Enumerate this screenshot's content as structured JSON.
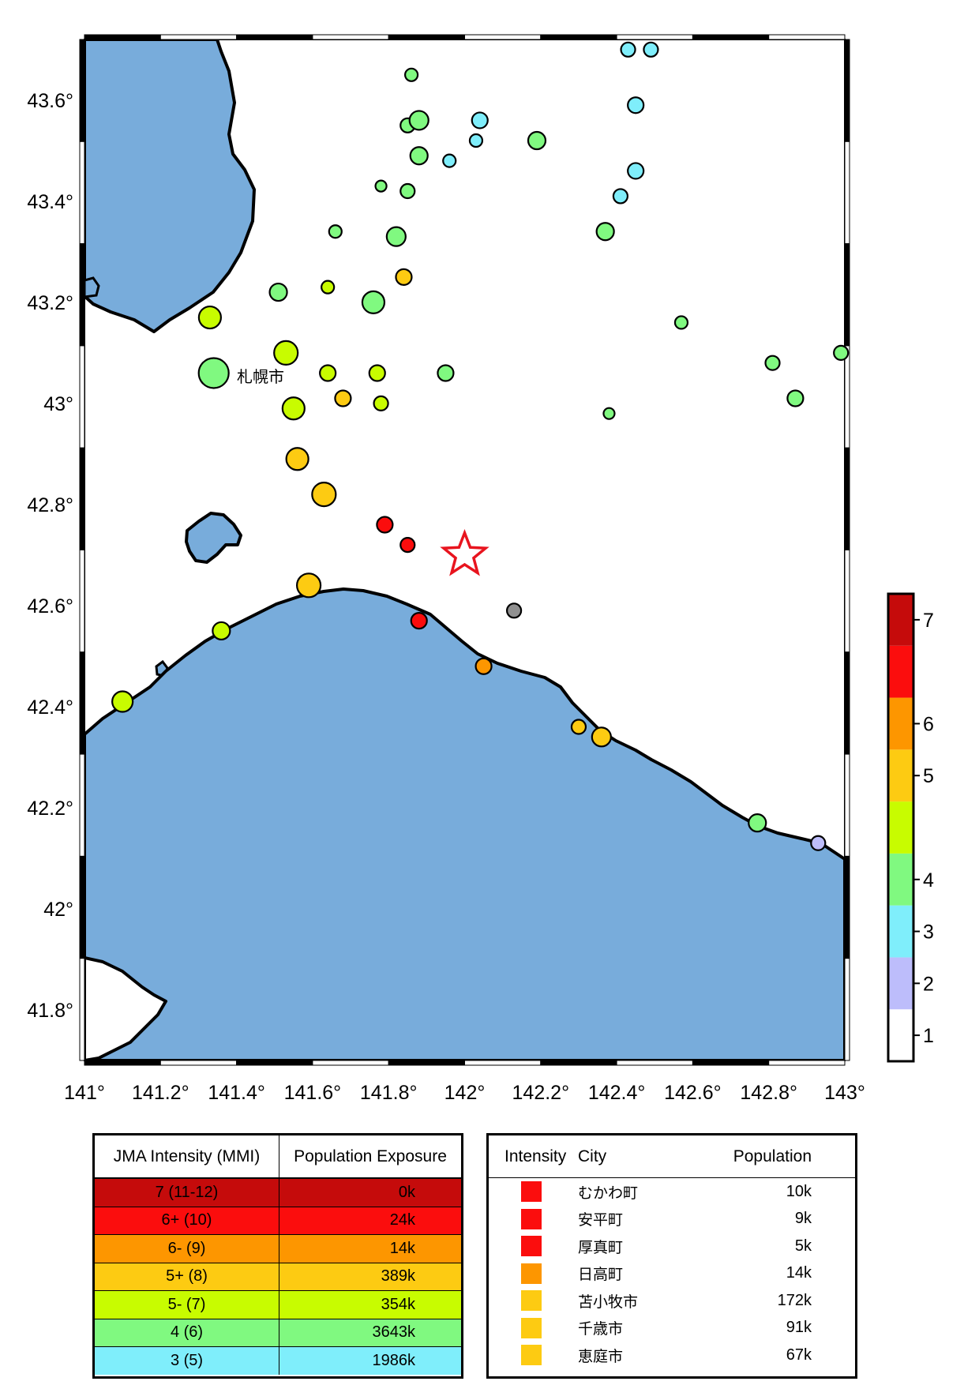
{
  "map": {
    "lon_ticks": [
      "141°",
      "141.2°",
      "141.4°",
      "141.6°",
      "141.8°",
      "142°",
      "142.2°",
      "142.4°",
      "142.6°",
      "142.8°",
      "143°"
    ],
    "lat_ticks": [
      "43.6°",
      "43.4°",
      "43.2°",
      "43°",
      "42.8°",
      "42.6°",
      "42.4°",
      "42.2°",
      "42°",
      "41.8°"
    ],
    "city_label": "札幌市",
    "colors": {
      "water": "#78acdb",
      "land": "#ffffff",
      "coast": "#000000",
      "epicenter": "#e8141e"
    },
    "epicenter_icon": "star-icon"
  },
  "colorbar": {
    "labels": [
      "1",
      "2",
      "3",
      "4",
      "5",
      "6",
      "7"
    ],
    "colors": [
      "#ffffff",
      "#bdbdfb",
      "#7feefb",
      "#80f980",
      "#c8fc00",
      "#fdcb12",
      "#fd9600",
      "#fb0d0d",
      "#c50b0b"
    ]
  },
  "exposure_table": {
    "headers": [
      "JMA Intensity (MMI)",
      "Population Exposure"
    ],
    "rows": [
      {
        "intensity": "7 (11-12)",
        "population": "0k",
        "color": "#c50b0b"
      },
      {
        "intensity": "6+ (10)",
        "population": "24k",
        "color": "#fb0d0d"
      },
      {
        "intensity": "6- (9)",
        "population": "14k",
        "color": "#fd9600"
      },
      {
        "intensity": "5+ (8)",
        "population": "389k",
        "color": "#fdcb12"
      },
      {
        "intensity": "5- (7)",
        "population": "354k",
        "color": "#c8fc00"
      },
      {
        "intensity": "4 (6)",
        "population": "3643k",
        "color": "#80f980"
      },
      {
        "intensity": "3 (5)",
        "population": "1986k",
        "color": "#7feefb"
      }
    ]
  },
  "city_table": {
    "headers": [
      "Intensity",
      "City",
      "Population"
    ],
    "rows": [
      {
        "city": "むかわ町",
        "population": "10k",
        "color": "#fb0d0d"
      },
      {
        "city": "安平町",
        "population": "9k",
        "color": "#fb0d0d"
      },
      {
        "city": "厚真町",
        "population": "5k",
        "color": "#fb0d0d"
      },
      {
        "city": "日高町",
        "population": "14k",
        "color": "#fd9600"
      },
      {
        "city": "苫小牧市",
        "population": "172k",
        "color": "#fdcb12"
      },
      {
        "city": "千歳市",
        "population": "91k",
        "color": "#fdcb12"
      },
      {
        "city": "恵庭市",
        "population": "67k",
        "color": "#fdcb12"
      }
    ]
  },
  "stations": [
    {
      "lon": 141.86,
      "lat": 43.65,
      "s": 5,
      "c": "#80f980"
    },
    {
      "lon": 141.85,
      "lat": 43.55,
      "s": 6,
      "c": "#80f980"
    },
    {
      "lon": 141.88,
      "lat": 43.56,
      "s": 9,
      "c": "#80f980"
    },
    {
      "lon": 141.88,
      "lat": 43.49,
      "s": 8,
      "c": "#80f980"
    },
    {
      "lon": 141.78,
      "lat": 43.43,
      "s": 4,
      "c": "#80f980"
    },
    {
      "lon": 141.85,
      "lat": 43.42,
      "s": 6,
      "c": "#80f980"
    },
    {
      "lon": 141.96,
      "lat": 43.48,
      "s": 5,
      "c": "#7feefb"
    },
    {
      "lon": 142.03,
      "lat": 43.52,
      "s": 5,
      "c": "#7feefb"
    },
    {
      "lon": 142.04,
      "lat": 43.56,
      "s": 7,
      "c": "#7feefb"
    },
    {
      "lon": 142.19,
      "lat": 43.52,
      "s": 8,
      "c": "#80f980"
    },
    {
      "lon": 142.43,
      "lat": 43.7,
      "s": 6,
      "c": "#7feefb"
    },
    {
      "lon": 142.49,
      "lat": 43.7,
      "s": 6,
      "c": "#7feefb"
    },
    {
      "lon": 142.45,
      "lat": 43.59,
      "s": 7,
      "c": "#7feefb"
    },
    {
      "lon": 142.45,
      "lat": 43.46,
      "s": 7,
      "c": "#7feefb"
    },
    {
      "lon": 142.41,
      "lat": 43.41,
      "s": 6,
      "c": "#7feefb"
    },
    {
      "lon": 142.37,
      "lat": 43.34,
      "s": 8,
      "c": "#80f980"
    },
    {
      "lon": 141.66,
      "lat": 43.34,
      "s": 5,
      "c": "#80f980"
    },
    {
      "lon": 141.82,
      "lat": 43.33,
      "s": 9,
      "c": "#80f980"
    },
    {
      "lon": 141.51,
      "lat": 43.22,
      "s": 8,
      "c": "#80f980"
    },
    {
      "lon": 141.64,
      "lat": 43.23,
      "s": 5,
      "c": "#c8fc00"
    },
    {
      "lon": 141.76,
      "lat": 43.2,
      "s": 11,
      "c": "#80f980"
    },
    {
      "lon": 141.84,
      "lat": 43.25,
      "s": 7,
      "c": "#fdcb12"
    },
    {
      "lon": 141.33,
      "lat": 43.17,
      "s": 11,
      "c": "#c8fc00"
    },
    {
      "lon": 142.57,
      "lat": 43.16,
      "s": 5,
      "c": "#80f980"
    },
    {
      "lon": 141.53,
      "lat": 43.1,
      "s": 12,
      "c": "#c8fc00"
    },
    {
      "lon": 141.34,
      "lat": 43.06,
      "s": 16,
      "c": "#80f980"
    },
    {
      "lon": 141.64,
      "lat": 43.06,
      "s": 7,
      "c": "#c8fc00"
    },
    {
      "lon": 141.77,
      "lat": 43.06,
      "s": 7,
      "c": "#c8fc00"
    },
    {
      "lon": 141.95,
      "lat": 43.06,
      "s": 7,
      "c": "#80f980"
    },
    {
      "lon": 142.81,
      "lat": 43.08,
      "s": 6,
      "c": "#80f980"
    },
    {
      "lon": 142.99,
      "lat": 43.1,
      "s": 6,
      "c": "#80f980"
    },
    {
      "lon": 141.68,
      "lat": 43.01,
      "s": 7,
      "c": "#fdcb12"
    },
    {
      "lon": 141.78,
      "lat": 43.0,
      "s": 6,
      "c": "#c8fc00"
    },
    {
      "lon": 141.55,
      "lat": 42.99,
      "s": 11,
      "c": "#c8fc00"
    },
    {
      "lon": 142.87,
      "lat": 43.01,
      "s": 7,
      "c": "#80f980"
    },
    {
      "lon": 142.38,
      "lat": 42.98,
      "s": 4,
      "c": "#80f980"
    },
    {
      "lon": 141.56,
      "lat": 42.89,
      "s": 11,
      "c": "#fdcb12"
    },
    {
      "lon": 141.63,
      "lat": 42.82,
      "s": 12,
      "c": "#fdcb12"
    },
    {
      "lon": 141.79,
      "lat": 42.76,
      "s": 7,
      "c": "#fb0d0d"
    },
    {
      "lon": 141.85,
      "lat": 42.72,
      "s": 6,
      "c": "#fb0d0d"
    },
    {
      "lon": 141.59,
      "lat": 42.64,
      "s": 12,
      "c": "#fdcb12"
    },
    {
      "lon": 142.13,
      "lat": 42.59,
      "s": 6,
      "c": "#909090"
    },
    {
      "lon": 141.36,
      "lat": 42.55,
      "s": 8,
      "c": "#c8fc00"
    },
    {
      "lon": 141.88,
      "lat": 42.57,
      "s": 7,
      "c": "#fb0d0d"
    },
    {
      "lon": 142.05,
      "lat": 42.48,
      "s": 7,
      "c": "#fd9600"
    },
    {
      "lon": 141.1,
      "lat": 42.41,
      "s": 10,
      "c": "#c8fc00"
    },
    {
      "lon": 142.3,
      "lat": 42.36,
      "s": 6,
      "c": "#fdcb12"
    },
    {
      "lon": 142.36,
      "lat": 42.34,
      "s": 9,
      "c": "#fdcb12"
    },
    {
      "lon": 142.77,
      "lat": 42.17,
      "s": 8,
      "c": "#80f980"
    },
    {
      "lon": 142.93,
      "lat": 42.13,
      "s": 6,
      "c": "#bdbdfb"
    }
  ],
  "epicenter": {
    "lon": 142.0,
    "lat": 42.7
  }
}
